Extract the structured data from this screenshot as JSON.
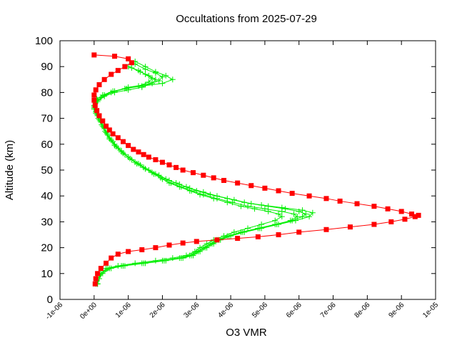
{
  "chart_data": {
    "type": "line",
    "title": "Occultations from 2025-07-29",
    "xlabel": "O3 VMR",
    "ylabel": "Altitude (km)",
    "xlim": [
      -1e-06,
      1e-05
    ],
    "ylim": [
      0,
      100
    ],
    "x_ticks": [
      -1e-06,
      0,
      1e-06,
      2e-06,
      3e-06,
      4e-06,
      5e-06,
      6e-06,
      7e-06,
      8e-06,
      9e-06,
      1e-05
    ],
    "x_tick_labels": [
      "-1e-06",
      "0e+00",
      "1e-06",
      "2e-06",
      "3e-06",
      "4e-06",
      "5e-06",
      "6e-06",
      "7e-06",
      "8e-06",
      "9e-06",
      "1e-05"
    ],
    "y_ticks": [
      0,
      10,
      20,
      30,
      40,
      50,
      60,
      70,
      80,
      90,
      100
    ],
    "y_tick_labels": [
      "0",
      "10",
      "20",
      "30",
      "40",
      "50",
      "60",
      "70",
      "80",
      "90",
      "100"
    ],
    "grid": false,
    "legend": "none",
    "series": [
      {
        "color": "#ff0000",
        "marker": "square",
        "points": [
          [
            3e-08,
            6
          ],
          [
            5e-08,
            8
          ],
          [
            1e-07,
            10
          ],
          [
            2e-07,
            12
          ],
          [
            3.5e-07,
            14
          ],
          [
            5e-07,
            16
          ],
          [
            7e-07,
            17.5
          ],
          [
            1e-06,
            18.5
          ],
          [
            1.4e-06,
            19.2
          ],
          [
            1.8e-06,
            20
          ],
          [
            2.2e-06,
            21
          ],
          [
            2.6e-06,
            21.8
          ],
          [
            3e-06,
            22.4
          ],
          [
            3.6e-06,
            23
          ],
          [
            4.2e-06,
            23.6
          ],
          [
            4.8e-06,
            24.2
          ],
          [
            5.4e-06,
            25
          ],
          [
            6e-06,
            26
          ],
          [
            6.8e-06,
            27
          ],
          [
            7.5e-06,
            28
          ],
          [
            8.2e-06,
            29
          ],
          [
            8.7e-06,
            30
          ],
          [
            9.1e-06,
            31
          ],
          [
            9.4e-06,
            32
          ],
          [
            9.5e-06,
            32.5
          ],
          [
            9.3e-06,
            33
          ],
          [
            9e-06,
            34
          ],
          [
            8.6e-06,
            35
          ],
          [
            8.2e-06,
            36
          ],
          [
            7.7e-06,
            37
          ],
          [
            7.2e-06,
            38
          ],
          [
            6.8e-06,
            39
          ],
          [
            6.3e-06,
            40
          ],
          [
            5.8e-06,
            41
          ],
          [
            5.4e-06,
            42
          ],
          [
            5e-06,
            43
          ],
          [
            4.6e-06,
            44
          ],
          [
            4.2e-06,
            45
          ],
          [
            3.8e-06,
            46
          ],
          [
            3.5e-06,
            47
          ],
          [
            3.2e-06,
            48
          ],
          [
            2.9e-06,
            49
          ],
          [
            2.6e-06,
            50
          ],
          [
            2.4e-06,
            51
          ],
          [
            2.2e-06,
            52
          ],
          [
            2e-06,
            53
          ],
          [
            1.8e-06,
            54
          ],
          [
            1.6e-06,
            55
          ],
          [
            1.45e-06,
            56
          ],
          [
            1.3e-06,
            57
          ],
          [
            1.15e-06,
            58
          ],
          [
            1e-06,
            59.5
          ],
          [
            8.5e-07,
            61
          ],
          [
            7e-07,
            62.5
          ],
          [
            5.5e-07,
            64
          ],
          [
            4.5e-07,
            65.5
          ],
          [
            3.5e-07,
            67
          ],
          [
            2.5e-07,
            69
          ],
          [
            1.5e-07,
            71
          ],
          [
            8e-08,
            73
          ],
          [
            3e-08,
            75
          ],
          [
            0.0,
            77
          ],
          [
            0.0,
            79
          ],
          [
            5e-08,
            81
          ],
          [
            1.5e-07,
            83
          ],
          [
            3e-07,
            85
          ],
          [
            5e-07,
            87
          ],
          [
            7e-07,
            88.5
          ],
          [
            9e-07,
            90
          ],
          [
            1.1e-06,
            91.5
          ],
          [
            1e-06,
            93
          ],
          [
            6e-07,
            94
          ],
          [
            0.0,
            94.5
          ]
        ]
      },
      {
        "color": "#00ee00",
        "marker": "plus",
        "points": [
          [
            1e-07,
            6
          ],
          [
            1.5e-07,
            8
          ],
          [
            2e-07,
            10
          ],
          [
            4e-07,
            12
          ],
          [
            8e-07,
            13
          ],
          [
            1.4e-06,
            14
          ],
          [
            2e-06,
            15
          ],
          [
            2.5e-06,
            16
          ],
          [
            2.8e-06,
            17
          ],
          [
            3e-06,
            18.5
          ],
          [
            3.2e-06,
            20
          ],
          [
            3.4e-06,
            21.5
          ],
          [
            3.6e-06,
            23
          ],
          [
            3.9e-06,
            24.5
          ],
          [
            4.3e-06,
            26
          ],
          [
            4.8e-06,
            27.5
          ],
          [
            5.3e-06,
            29
          ],
          [
            5.8e-06,
            30.5
          ],
          [
            6.1e-06,
            32
          ],
          [
            6.2e-06,
            33
          ],
          [
            6e-06,
            34
          ],
          [
            5.6e-06,
            35
          ],
          [
            5.1e-06,
            36
          ],
          [
            4.6e-06,
            37
          ],
          [
            4.1e-06,
            38.5
          ],
          [
            3.6e-06,
            40
          ],
          [
            3.2e-06,
            41.5
          ],
          [
            2.8e-06,
            43
          ],
          [
            2.5e-06,
            44.5
          ],
          [
            2.2e-06,
            46
          ],
          [
            1.9e-06,
            48
          ],
          [
            1.6e-06,
            50
          ],
          [
            1.35e-06,
            52
          ],
          [
            1.1e-06,
            54
          ],
          [
            9e-07,
            56
          ],
          [
            7e-07,
            58.5
          ],
          [
            5.5e-07,
            61
          ],
          [
            4e-07,
            63.5
          ],
          [
            3e-07,
            66
          ],
          [
            2e-07,
            68.5
          ],
          [
            1e-07,
            71
          ],
          [
            0.0,
            73.5
          ],
          [
            5e-08,
            76
          ],
          [
            2e-07,
            78
          ],
          [
            5e-07,
            80
          ],
          [
            9e-07,
            81.5
          ],
          [
            1.4e-06,
            82.5
          ],
          [
            2e-06,
            83.5
          ],
          [
            2.3e-06,
            85
          ],
          [
            2.1e-06,
            86.5
          ],
          [
            1.8e-06,
            88
          ],
          [
            1.5e-06,
            90
          ],
          [
            1.2e-06,
            92
          ]
        ]
      },
      {
        "color": "#00ee00",
        "marker": "plus",
        "points": [
          [
            1e-07,
            6
          ],
          [
            1.5e-07,
            8
          ],
          [
            2.5e-07,
            10
          ],
          [
            5e-07,
            12
          ],
          [
            9e-07,
            13
          ],
          [
            1.5e-06,
            14
          ],
          [
            2.1e-06,
            15
          ],
          [
            2.6e-06,
            16
          ],
          [
            2.9e-06,
            17
          ],
          [
            3.1e-06,
            18.5
          ],
          [
            3.3e-06,
            20
          ],
          [
            3.5e-06,
            21.5
          ],
          [
            3.7e-06,
            23
          ],
          [
            4e-06,
            24.5
          ],
          [
            4.4e-06,
            26
          ],
          [
            4.9e-06,
            27.5
          ],
          [
            5.4e-06,
            29
          ],
          [
            5.9e-06,
            30.5
          ],
          [
            6.3e-06,
            32
          ],
          [
            6.4e-06,
            33.5
          ],
          [
            6.1e-06,
            34.5
          ],
          [
            5.5e-06,
            35.5
          ],
          [
            4.9e-06,
            36.5
          ],
          [
            4.4e-06,
            37.5
          ],
          [
            3.9e-06,
            39
          ],
          [
            3.4e-06,
            40.5
          ],
          [
            3e-06,
            42
          ],
          [
            2.7e-06,
            43.5
          ],
          [
            2.4e-06,
            45
          ],
          [
            2.1e-06,
            46.5
          ],
          [
            1.8e-06,
            48.5
          ],
          [
            1.5e-06,
            50.5
          ],
          [
            1.25e-06,
            52.5
          ],
          [
            1e-06,
            55
          ],
          [
            8e-07,
            57
          ],
          [
            6e-07,
            59.5
          ],
          [
            4.5e-07,
            62
          ],
          [
            3.5e-07,
            64.5
          ],
          [
            2.5e-07,
            67
          ],
          [
            1.5e-07,
            69.5
          ],
          [
            5e-08,
            72
          ],
          [
            0.0,
            74.5
          ],
          [
            1e-07,
            77
          ],
          [
            3e-07,
            79
          ],
          [
            6e-07,
            80.5
          ],
          [
            1e-06,
            82
          ],
          [
            1.5e-06,
            83
          ],
          [
            1.9e-06,
            84.5
          ],
          [
            2e-06,
            86
          ],
          [
            1.8e-06,
            87.5
          ],
          [
            1.5e-06,
            89
          ],
          [
            1.2e-06,
            91
          ]
        ]
      },
      {
        "color": "#00ee00",
        "marker": "plus",
        "points": [
          [
            5e-08,
            6
          ],
          [
            1e-07,
            8
          ],
          [
            2e-07,
            10
          ],
          [
            3.5e-07,
            12
          ],
          [
            7e-07,
            13
          ],
          [
            1.2e-06,
            14
          ],
          [
            1.8e-06,
            15
          ],
          [
            2.3e-06,
            16
          ],
          [
            2.7e-06,
            17
          ],
          [
            2.95e-06,
            18.5
          ],
          [
            3.1e-06,
            20
          ],
          [
            3.3e-06,
            21.5
          ],
          [
            3.5e-06,
            23
          ],
          [
            3.8e-06,
            24.5
          ],
          [
            4.1e-06,
            26
          ],
          [
            4.5e-06,
            27.5
          ],
          [
            4.9e-06,
            29
          ],
          [
            5.3e-06,
            30.5
          ],
          [
            5.5e-06,
            32
          ],
          [
            5.4e-06,
            33
          ],
          [
            5.1e-06,
            34
          ],
          [
            4.7e-06,
            35
          ],
          [
            4.3e-06,
            36
          ],
          [
            3.9e-06,
            37.5
          ],
          [
            3.5e-06,
            39
          ],
          [
            3.1e-06,
            40.5
          ],
          [
            2.8e-06,
            42
          ],
          [
            2.5e-06,
            43.5
          ],
          [
            2.2e-06,
            45
          ],
          [
            1.95e-06,
            47
          ],
          [
            1.7e-06,
            49
          ],
          [
            1.45e-06,
            51
          ],
          [
            1.2e-06,
            53
          ],
          [
            1e-06,
            55
          ],
          [
            8e-07,
            57.5
          ],
          [
            6e-07,
            60
          ],
          [
            4.5e-07,
            62.5
          ],
          [
            3.2e-07,
            65
          ],
          [
            2.2e-07,
            67.5
          ],
          [
            1.2e-07,
            70
          ],
          [
            5e-08,
            72.5
          ],
          [
            0.0,
            75
          ],
          [
            8e-08,
            77.5
          ],
          [
            2.5e-07,
            79
          ],
          [
            5.5e-07,
            80.5
          ],
          [
            9.5e-07,
            81.5
          ],
          [
            1.3e-06,
            82.5
          ],
          [
            1.6e-06,
            84
          ],
          [
            1.7e-06,
            85.5
          ],
          [
            1.5e-06,
            87
          ],
          [
            1.3e-06,
            88.5
          ],
          [
            1e-06,
            90
          ]
        ]
      },
      {
        "color": "#00ee00",
        "marker": "plus",
        "points": [
          [
            1e-07,
            6
          ],
          [
            1.5e-07,
            8
          ],
          [
            2e-07,
            10
          ],
          [
            4.5e-07,
            12
          ],
          [
            8.5e-07,
            13
          ],
          [
            1.45e-06,
            14
          ],
          [
            2.05e-06,
            15
          ],
          [
            2.55e-06,
            16
          ],
          [
            2.85e-06,
            17
          ],
          [
            3.05e-06,
            18.5
          ],
          [
            3.25e-06,
            20
          ],
          [
            3.45e-06,
            21.5
          ],
          [
            3.65e-06,
            23
          ],
          [
            3.95e-06,
            24.5
          ],
          [
            4.35e-06,
            26
          ],
          [
            4.85e-06,
            27.5
          ],
          [
            5.35e-06,
            29
          ],
          [
            5.75e-06,
            30.5
          ],
          [
            5.95e-06,
            32
          ],
          [
            5.85e-06,
            33
          ],
          [
            5.5e-06,
            34
          ],
          [
            5e-06,
            35
          ],
          [
            4.5e-06,
            36
          ],
          [
            4.05e-06,
            37.5
          ],
          [
            3.6e-06,
            39
          ],
          [
            3.2e-06,
            40.5
          ],
          [
            2.85e-06,
            42
          ],
          [
            2.55e-06,
            43.5
          ],
          [
            2.25e-06,
            45
          ],
          [
            2e-06,
            46.5
          ],
          [
            1.75e-06,
            48.5
          ],
          [
            1.5e-06,
            50.5
          ],
          [
            1.3e-06,
            52.5
          ],
          [
            1.05e-06,
            54.5
          ],
          [
            8.5e-07,
            56.5
          ],
          [
            6.5e-07,
            59
          ],
          [
            5e-07,
            61.5
          ],
          [
            3.8e-07,
            64
          ],
          [
            2.8e-07,
            66.5
          ],
          [
            1.8e-07,
            69
          ],
          [
            8e-08,
            71.5
          ],
          [
            0.0,
            74
          ],
          [
            1e-07,
            76.5
          ],
          [
            3e-07,
            78.5
          ],
          [
            6e-07,
            80
          ],
          [
            1e-06,
            81
          ],
          [
            1.4e-06,
            82
          ],
          [
            1.7e-06,
            83.5
          ],
          [
            1.8e-06,
            85
          ],
          [
            1.6e-06,
            86.5
          ],
          [
            1.35e-06,
            88
          ],
          [
            1.1e-06,
            89.5
          ]
        ]
      }
    ]
  }
}
